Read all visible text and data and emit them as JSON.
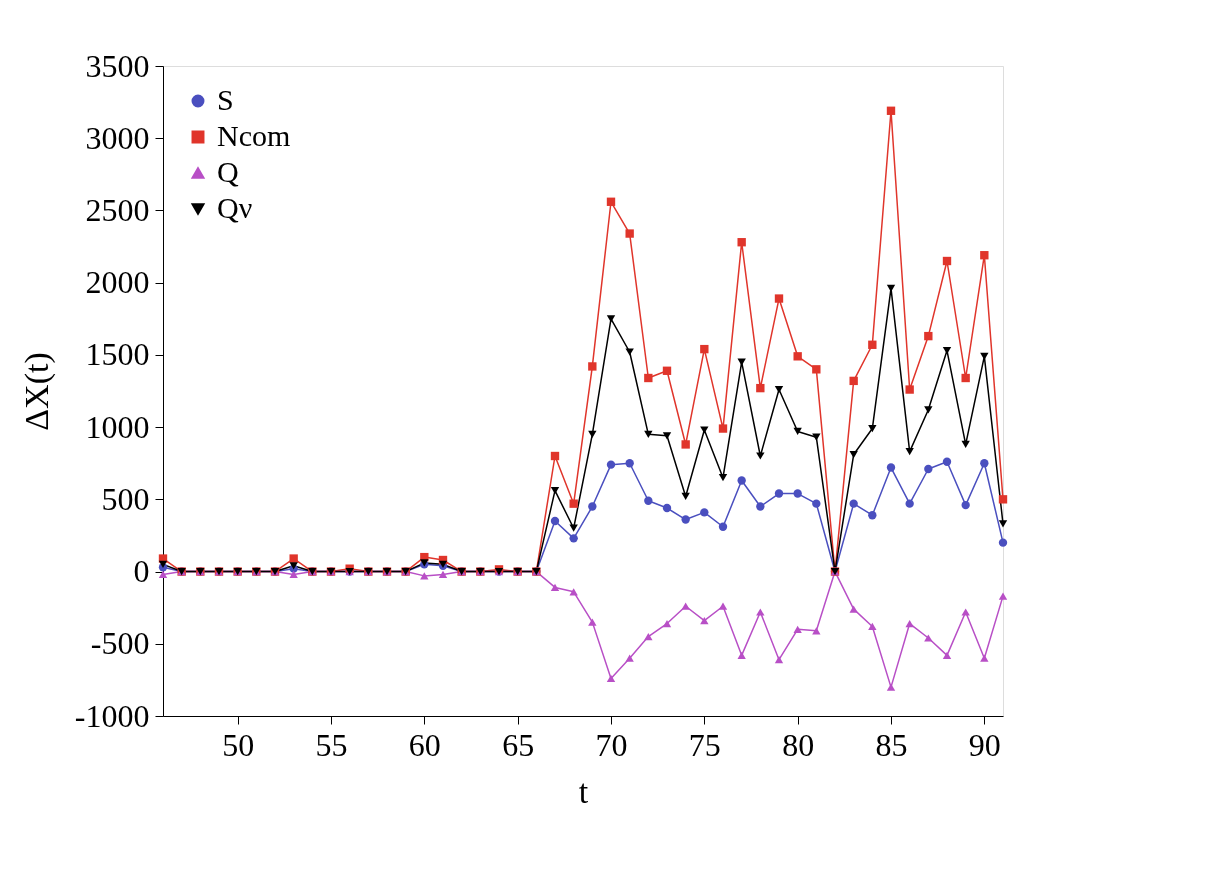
{
  "chart_data": {
    "type": "line",
    "xlabel": "t",
    "ylabel": "ΔX(t)",
    "x": [
      46,
      47,
      48,
      49,
      50,
      51,
      52,
      53,
      54,
      55,
      56,
      57,
      58,
      59,
      60,
      61,
      62,
      63,
      64,
      65,
      66,
      67,
      68,
      69,
      70,
      71,
      72,
      73,
      74,
      75,
      76,
      77,
      78,
      79,
      80,
      81,
      82,
      83,
      84,
      85,
      86,
      87,
      88,
      89,
      90,
      91
    ],
    "series": [
      {
        "name": "S",
        "color": "#4a4fbf",
        "marker": "circle",
        "values": [
          30,
          0,
          0,
          0,
          0,
          0,
          0,
          20,
          0,
          0,
          0,
          0,
          0,
          0,
          50,
          40,
          0,
          0,
          0,
          0,
          0,
          350,
          230,
          450,
          740,
          750,
          490,
          440,
          360,
          410,
          310,
          630,
          450,
          540,
          540,
          470,
          0,
          470,
          390,
          720,
          470,
          710,
          760,
          460,
          750,
          200
        ]
      },
      {
        "name": "Ncom",
        "color": "#e0352b",
        "marker": "square",
        "values": [
          90,
          0,
          0,
          0,
          0,
          0,
          0,
          90,
          0,
          0,
          20,
          0,
          0,
          0,
          100,
          80,
          0,
          0,
          15,
          0,
          0,
          800,
          470,
          1420,
          2560,
          2340,
          1340,
          1390,
          880,
          1540,
          990,
          2280,
          1270,
          1890,
          1490,
          1400,
          0,
          1320,
          1570,
          3190,
          1260,
          1630,
          2150,
          1340,
          2190,
          500
        ]
      },
      {
        "name": "Q",
        "color": "#b84fc6",
        "marker": "triangle",
        "values": [
          -20,
          0,
          0,
          0,
          0,
          0,
          0,
          -20,
          0,
          0,
          0,
          0,
          0,
          0,
          -30,
          -20,
          0,
          0,
          0,
          0,
          0,
          -110,
          -140,
          -350,
          -740,
          -600,
          -450,
          -360,
          -240,
          -340,
          -240,
          -580,
          -280,
          -610,
          -400,
          -410,
          0,
          -260,
          -380,
          -800,
          -360,
          -460,
          -580,
          -280,
          -600,
          -170
        ]
      },
      {
        "name": "Qν",
        "color": "#000000",
        "marker": "triangle-down",
        "values": [
          50,
          0,
          0,
          0,
          0,
          0,
          0,
          40,
          0,
          0,
          0,
          0,
          0,
          0,
          60,
          50,
          0,
          0,
          0,
          0,
          0,
          560,
          300,
          950,
          1750,
          1520,
          950,
          940,
          520,
          980,
          650,
          1450,
          800,
          1260,
          970,
          930,
          0,
          810,
          990,
          1960,
          830,
          1120,
          1530,
          880,
          1490,
          330
        ]
      }
    ],
    "xlim": [
      46,
      91
    ],
    "ylim": [
      -1000,
      3500
    ],
    "xticks": [
      50,
      55,
      60,
      65,
      70,
      75,
      80,
      85,
      90
    ],
    "yticks": [
      -1000,
      -500,
      0,
      500,
      1000,
      1500,
      2000,
      2500,
      3000,
      3500
    ],
    "grid": false,
    "legend": "top left",
    "line_style": "solid"
  }
}
